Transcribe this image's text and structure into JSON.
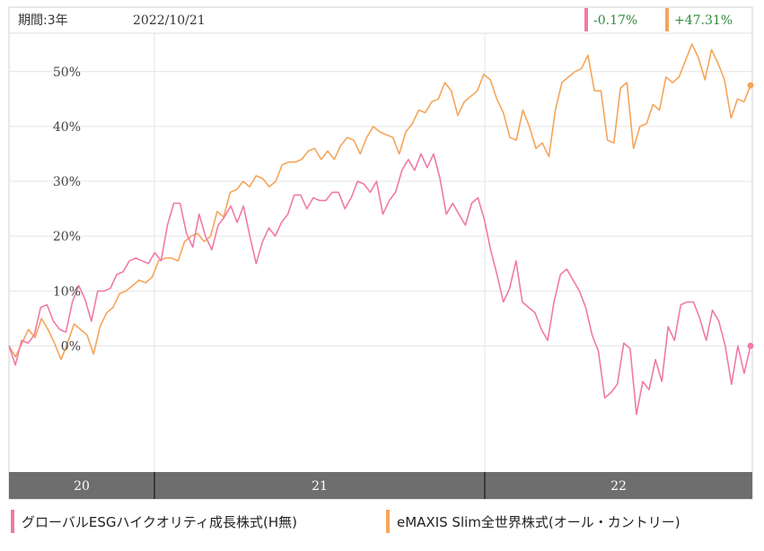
{
  "header": {
    "period_label": "期間:3年",
    "date_label": "2022/10/21",
    "returns": [
      {
        "value": "-0.17%",
        "color": "#f07aa8",
        "text_color": "#2e8b3a"
      },
      {
        "value": "+47.31%",
        "color": "#f5a55a",
        "text_color": "#2e8b3a"
      }
    ]
  },
  "chart_data": {
    "type": "line",
    "y_ticks": [
      "50%",
      "40%",
      "30%",
      "20%",
      "10%",
      "0%"
    ],
    "y_tick_values": [
      50,
      40,
      30,
      20,
      10,
      0
    ],
    "ylim": [
      -23,
      57
    ],
    "x_tick_labels": [
      "20",
      "21",
      "22"
    ],
    "grid": true,
    "legend_position": "bottom",
    "series": [
      {
        "name": "グローバルESGハイクオリティ成長株式(H無)",
        "color": "#f07aa8",
        "values": [
          0,
          -3.5,
          1,
          0.5,
          2,
          7,
          7.5,
          4.5,
          3,
          2.5,
          8,
          11,
          8.5,
          4.5,
          10,
          10,
          10.5,
          13,
          13.5,
          15.5,
          16,
          15.5,
          15,
          17,
          15.5,
          22,
          26,
          26,
          20.5,
          18,
          24,
          20,
          17.5,
          22,
          23.5,
          25.5,
          22.5,
          25.5,
          20,
          15,
          19,
          21.5,
          20,
          22.5,
          24,
          27.5,
          27.5,
          25,
          27,
          26.5,
          26.5,
          28,
          28,
          25,
          27,
          30,
          29.5,
          28,
          30,
          24,
          26.5,
          28,
          32,
          34,
          32,
          35,
          32.5,
          35,
          30.5,
          24,
          26,
          24,
          22,
          26,
          27,
          23,
          17.5,
          13,
          8,
          10.5,
          15.5,
          8,
          7,
          6,
          3,
          1,
          8,
          13,
          14,
          12,
          10,
          7,
          2,
          -1,
          -9.5,
          -8.5,
          -7,
          0.5,
          -0.5,
          -12.5,
          -6.5,
          -8,
          -2.5,
          -6.5,
          3.5,
          1,
          7.5,
          8,
          8,
          5,
          1,
          6.5,
          4.5,
          0,
          -7,
          0,
          -5,
          0
        ]
      },
      {
        "name": "eMAXIS Slim全世界株式(オール・カントリー)",
        "color": "#f5a55a",
        "values": [
          0,
          -2,
          0.5,
          3,
          1.5,
          5,
          3,
          0.5,
          -2.5,
          0.5,
          4,
          3,
          2,
          -1.5,
          3.5,
          6,
          7,
          9.5,
          10,
          11,
          12,
          11.5,
          12.5,
          15.5,
          16,
          16,
          15.5,
          19,
          20,
          20.5,
          19,
          20,
          24.5,
          23.5,
          28,
          28.5,
          30,
          29,
          31,
          30.5,
          29,
          30,
          33,
          33.5,
          33.5,
          34,
          35.5,
          36,
          34,
          35.5,
          34,
          36.5,
          38,
          37.5,
          35,
          38,
          40,
          39,
          38.5,
          38,
          35,
          39,
          40.5,
          43,
          42.5,
          44.5,
          45,
          48,
          46.5,
          42,
          44.5,
          45.5,
          46.5,
          49.5,
          48.5,
          45,
          42.5,
          38,
          37.5,
          43,
          40,
          36,
          37,
          34.5,
          43,
          48,
          49,
          50,
          50.5,
          53,
          46.5,
          46.5,
          37.5,
          37,
          47,
          48,
          36,
          40,
          40.5,
          44,
          43,
          49,
          48,
          49,
          52,
          55,
          52.5,
          48.5,
          54,
          51.5,
          48.5,
          41.5,
          45,
          44.5,
          47.5
        ]
      }
    ]
  }
}
